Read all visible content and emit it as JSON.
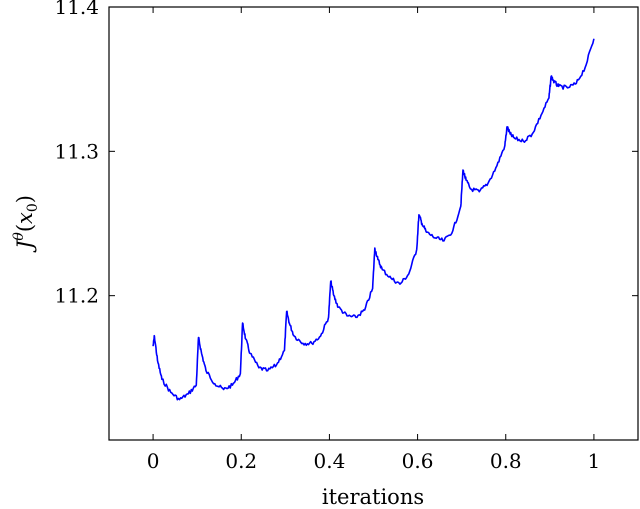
{
  "chart_data": {
    "type": "line",
    "xlabel": "iterations",
    "ylabel": "J^θ(x₀)",
    "ylabel_parts": {
      "main": "J",
      "sup": "θ",
      "open": "(",
      "var": "x",
      "sub": "0",
      "close": ")"
    },
    "xlim": [
      -0.1,
      1.1
    ],
    "ylim": [
      11.1,
      11.4
    ],
    "xticks": [
      0,
      0.2,
      0.4,
      0.6,
      0.8,
      1
    ],
    "xtick_labels": [
      "0",
      "0.2",
      "0.4",
      "0.6",
      "0.8",
      "1"
    ],
    "yticks": [
      11.2,
      11.3,
      11.4
    ],
    "ytick_labels": [
      "11.2",
      "11.3",
      "11.4"
    ],
    "grid": false,
    "series": [
      {
        "color": "#0000ff",
        "x": [
          0.0,
          0.003,
          0.01,
          0.02,
          0.04,
          0.06,
          0.08,
          0.098,
          0.103,
          0.11,
          0.12,
          0.14,
          0.16,
          0.18,
          0.198,
          0.203,
          0.21,
          0.22,
          0.24,
          0.26,
          0.28,
          0.298,
          0.303,
          0.31,
          0.32,
          0.34,
          0.36,
          0.38,
          0.398,
          0.403,
          0.41,
          0.42,
          0.44,
          0.46,
          0.48,
          0.498,
          0.503,
          0.51,
          0.52,
          0.54,
          0.56,
          0.58,
          0.598,
          0.603,
          0.61,
          0.62,
          0.64,
          0.66,
          0.68,
          0.698,
          0.703,
          0.71,
          0.72,
          0.74,
          0.76,
          0.78,
          0.798,
          0.803,
          0.81,
          0.82,
          0.84,
          0.86,
          0.88,
          0.898,
          0.903,
          0.91,
          0.92,
          0.94,
          0.96,
          0.98,
          1.0
        ],
        "y": [
          11.165,
          11.172,
          11.155,
          11.142,
          11.133,
          11.128,
          11.132,
          11.138,
          11.171,
          11.16,
          11.148,
          11.139,
          11.135,
          11.138,
          11.146,
          11.181,
          11.17,
          11.16,
          11.15,
          11.148,
          11.152,
          11.162,
          11.189,
          11.18,
          11.172,
          11.167,
          11.167,
          11.172,
          11.185,
          11.21,
          11.2,
          11.192,
          11.186,
          11.185,
          11.19,
          11.205,
          11.233,
          11.225,
          11.218,
          11.212,
          11.208,
          11.215,
          11.232,
          11.256,
          11.25,
          11.244,
          11.24,
          11.238,
          11.245,
          11.262,
          11.287,
          11.28,
          11.274,
          11.272,
          11.278,
          11.29,
          11.304,
          11.317,
          11.312,
          11.309,
          11.307,
          11.312,
          11.325,
          11.337,
          11.352,
          11.348,
          11.345,
          11.344,
          11.347,
          11.358,
          11.378
        ]
      }
    ]
  }
}
